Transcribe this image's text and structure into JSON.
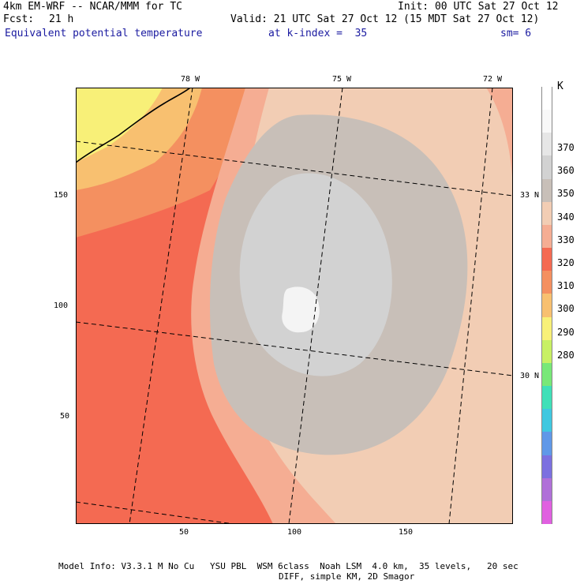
{
  "header": {
    "model": "4km EM-WRF -- NCAR/MMM for TC",
    "init": "Init: 00 UTC Sat 27 Oct 12",
    "fcst_label": "Fcst:",
    "fcst_value": "21 h",
    "valid": "Valid: 21 UTC Sat 27 Oct 12 (15 MDT Sat 27 Oct 12)",
    "field": "Equivalent potential temperature",
    "level": "at k-index =  35",
    "smooth": "sm= 6"
  },
  "map": {
    "lon_labels": [
      "78 W",
      "75 W",
      "72 W"
    ],
    "lat_labels": [
      "33 N",
      "30 N"
    ],
    "y_ticks": [
      "150",
      "100",
      "50"
    ],
    "x_ticks": [
      "50",
      "100",
      "150"
    ]
  },
  "colorbar": {
    "unit": "K",
    "labels": [
      "370",
      "360",
      "350",
      "340",
      "330",
      "320",
      "310",
      "300",
      "290",
      "280"
    ],
    "colors": [
      "#ffffff",
      "#f8f8f8",
      "#e6e6e6",
      "#d2d2d2",
      "#c8bfb8",
      "#f2cdb4",
      "#f5ad93",
      "#f46a52",
      "#f49060",
      "#f8c070",
      "#f8f078",
      "#c8f064",
      "#78e878",
      "#40e0b8",
      "#40c8e0",
      "#6098e8",
      "#7c70e0",
      "#b070d8",
      "#e060e0"
    ]
  },
  "footer": {
    "line1": "Model Info: V3.3.1 M No Cu   YSU PBL  WSM 6class  Noah LSM  4.0 km,  35 levels,   20 sec",
    "line2": "DIFF, simple KM, 2D Smagor"
  }
}
